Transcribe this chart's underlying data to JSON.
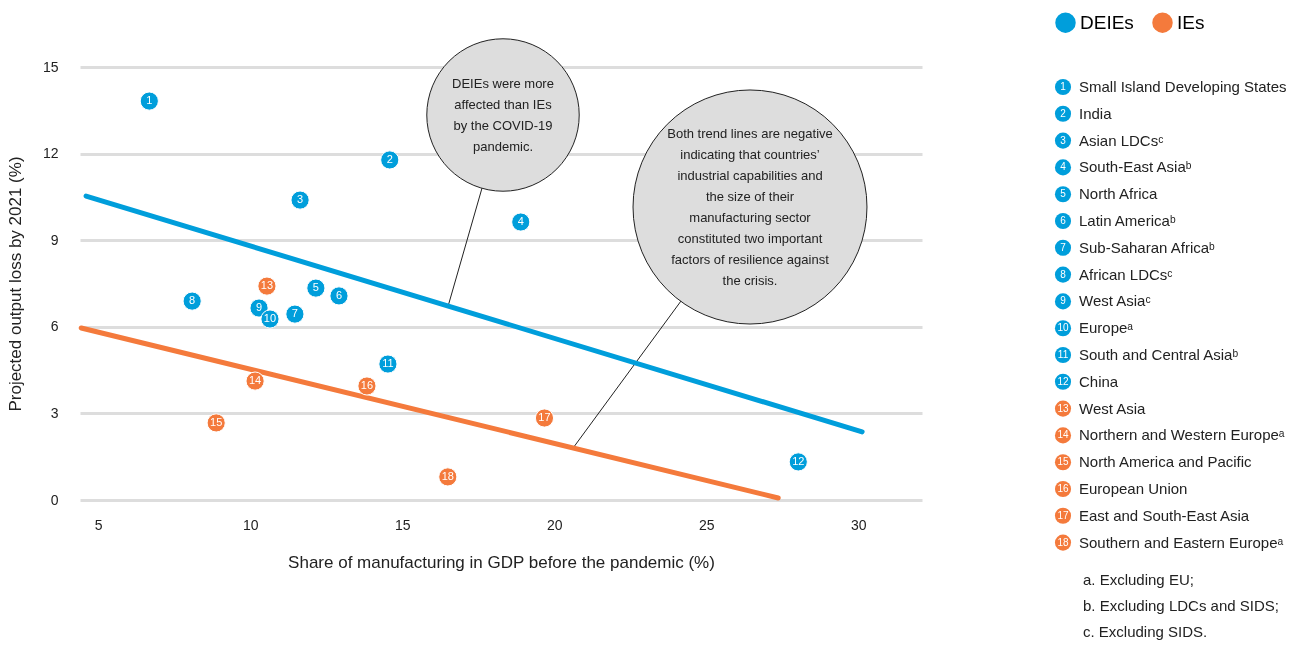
{
  "chart_data": {
    "type": "scatter",
    "xlabel": "Share of manufacturing in GDP before the pandemic (%)",
    "ylabel": "Projected output loss by 2021 (%)",
    "xlim": [
      4.4,
      32.1
    ],
    "ylim": [
      0,
      15
    ],
    "xticks": [
      5,
      10,
      15,
      20,
      25,
      30
    ],
    "yticks": [
      0,
      3,
      6,
      9,
      12,
      15
    ],
    "grid": "y",
    "legend": "top right",
    "marker": "circle",
    "series": [
      {
        "name": "DEIEs",
        "color": "#009edb",
        "x": [
          6.68,
          14.59,
          11.64,
          18.9,
          12.16,
          12.92,
          11.47,
          8.09,
          10.29,
          10.65,
          14.53,
          28.03
        ],
        "values": [
          13.82,
          11.78,
          10.39,
          9.63,
          7.34,
          7.07,
          6.44,
          6.89,
          6.65,
          6.27,
          4.71,
          1.32
        ]
      },
      {
        "name": "IEs",
        "color": "#f47a3c",
        "x": [
          10.55,
          10.16,
          8.88,
          13.84,
          19.68,
          16.5
        ],
        "values": [
          7.41,
          4.12,
          2.67,
          3.95,
          2.84,
          0.8
        ]
      },
      {
        "type": "line",
        "marker": "none",
        "color": "#009edb",
        "x": [
          4.6,
          30.13
        ],
        "values": [
          10.53,
          2.36
        ]
      },
      {
        "type": "line",
        "marker": "none",
        "color": "#f47a3c",
        "x": [
          4.44,
          27.37
        ],
        "values": [
          5.96,
          0.07
        ]
      }
    ],
    "annotations": [
      {
        "text": "1",
        "x": 6.68,
        "y": 13.82
      },
      {
        "text": "2",
        "x": 14.59,
        "y": 11.78
      },
      {
        "text": "3",
        "x": 11.64,
        "y": 10.39
      },
      {
        "text": "4",
        "x": 18.9,
        "y": 9.63
      },
      {
        "text": "5",
        "x": 12.16,
        "y": 7.34
      },
      {
        "text": "6",
        "x": 12.92,
        "y": 7.07
      },
      {
        "text": "7",
        "x": 11.47,
        "y": 6.44
      },
      {
        "text": "8",
        "x": 8.09,
        "y": 6.89
      },
      {
        "text": "9",
        "x": 10.29,
        "y": 6.65
      },
      {
        "text": "10",
        "x": 10.65,
        "y": 6.27
      },
      {
        "text": "11",
        "x": 14.53,
        "y": 4.71
      },
      {
        "text": "12",
        "x": 28.03,
        "y": 1.32
      },
      {
        "text": "13",
        "x": 10.55,
        "y": 7.41
      },
      {
        "text": "14",
        "x": 10.16,
        "y": 4.12
      },
      {
        "text": "15",
        "x": 8.88,
        "y": 2.67
      },
      {
        "text": "16",
        "x": 13.84,
        "y": 3.95
      },
      {
        "text": "17",
        "x": 19.68,
        "y": 2.84
      },
      {
        "text": "18",
        "x": 16.5,
        "y": 0.8
      },
      {
        "text": "DEIEs were more affected than IEs by the COVID-19 pandemic.",
        "x": 16.53,
        "y": 6.79
      },
      {
        "text": "Both trend lines are negative indicating that countries’ industrial capabilities and the size of their manufacturing sector constituted two important factors of resilience against the crisis.",
        "x": 20.6,
        "y": 1.77
      },
      "Small Island Developing States",
      "India",
      "Asian LDCsᶜ",
      "South-East Asiaᵇ",
      "North Africa",
      "Latin Americaᵇ",
      "Sub-Saharan Africaᵇ",
      "African LDCsᶜ",
      "West Asiaᶜ",
      "Europeᵃ",
      "South and Central Asiaᵇ",
      "China",
      "West Asia",
      "Northern and Western Europeᵃ",
      "North America and Pacific",
      "European Union",
      "East and South-East Asia",
      "Southern and Eastern Europeᵃ",
      "a. Excluding EU;",
      "b. Excluding LDCs and SIDS;",
      "c. Excluding SIDS."
    ]
  }
}
